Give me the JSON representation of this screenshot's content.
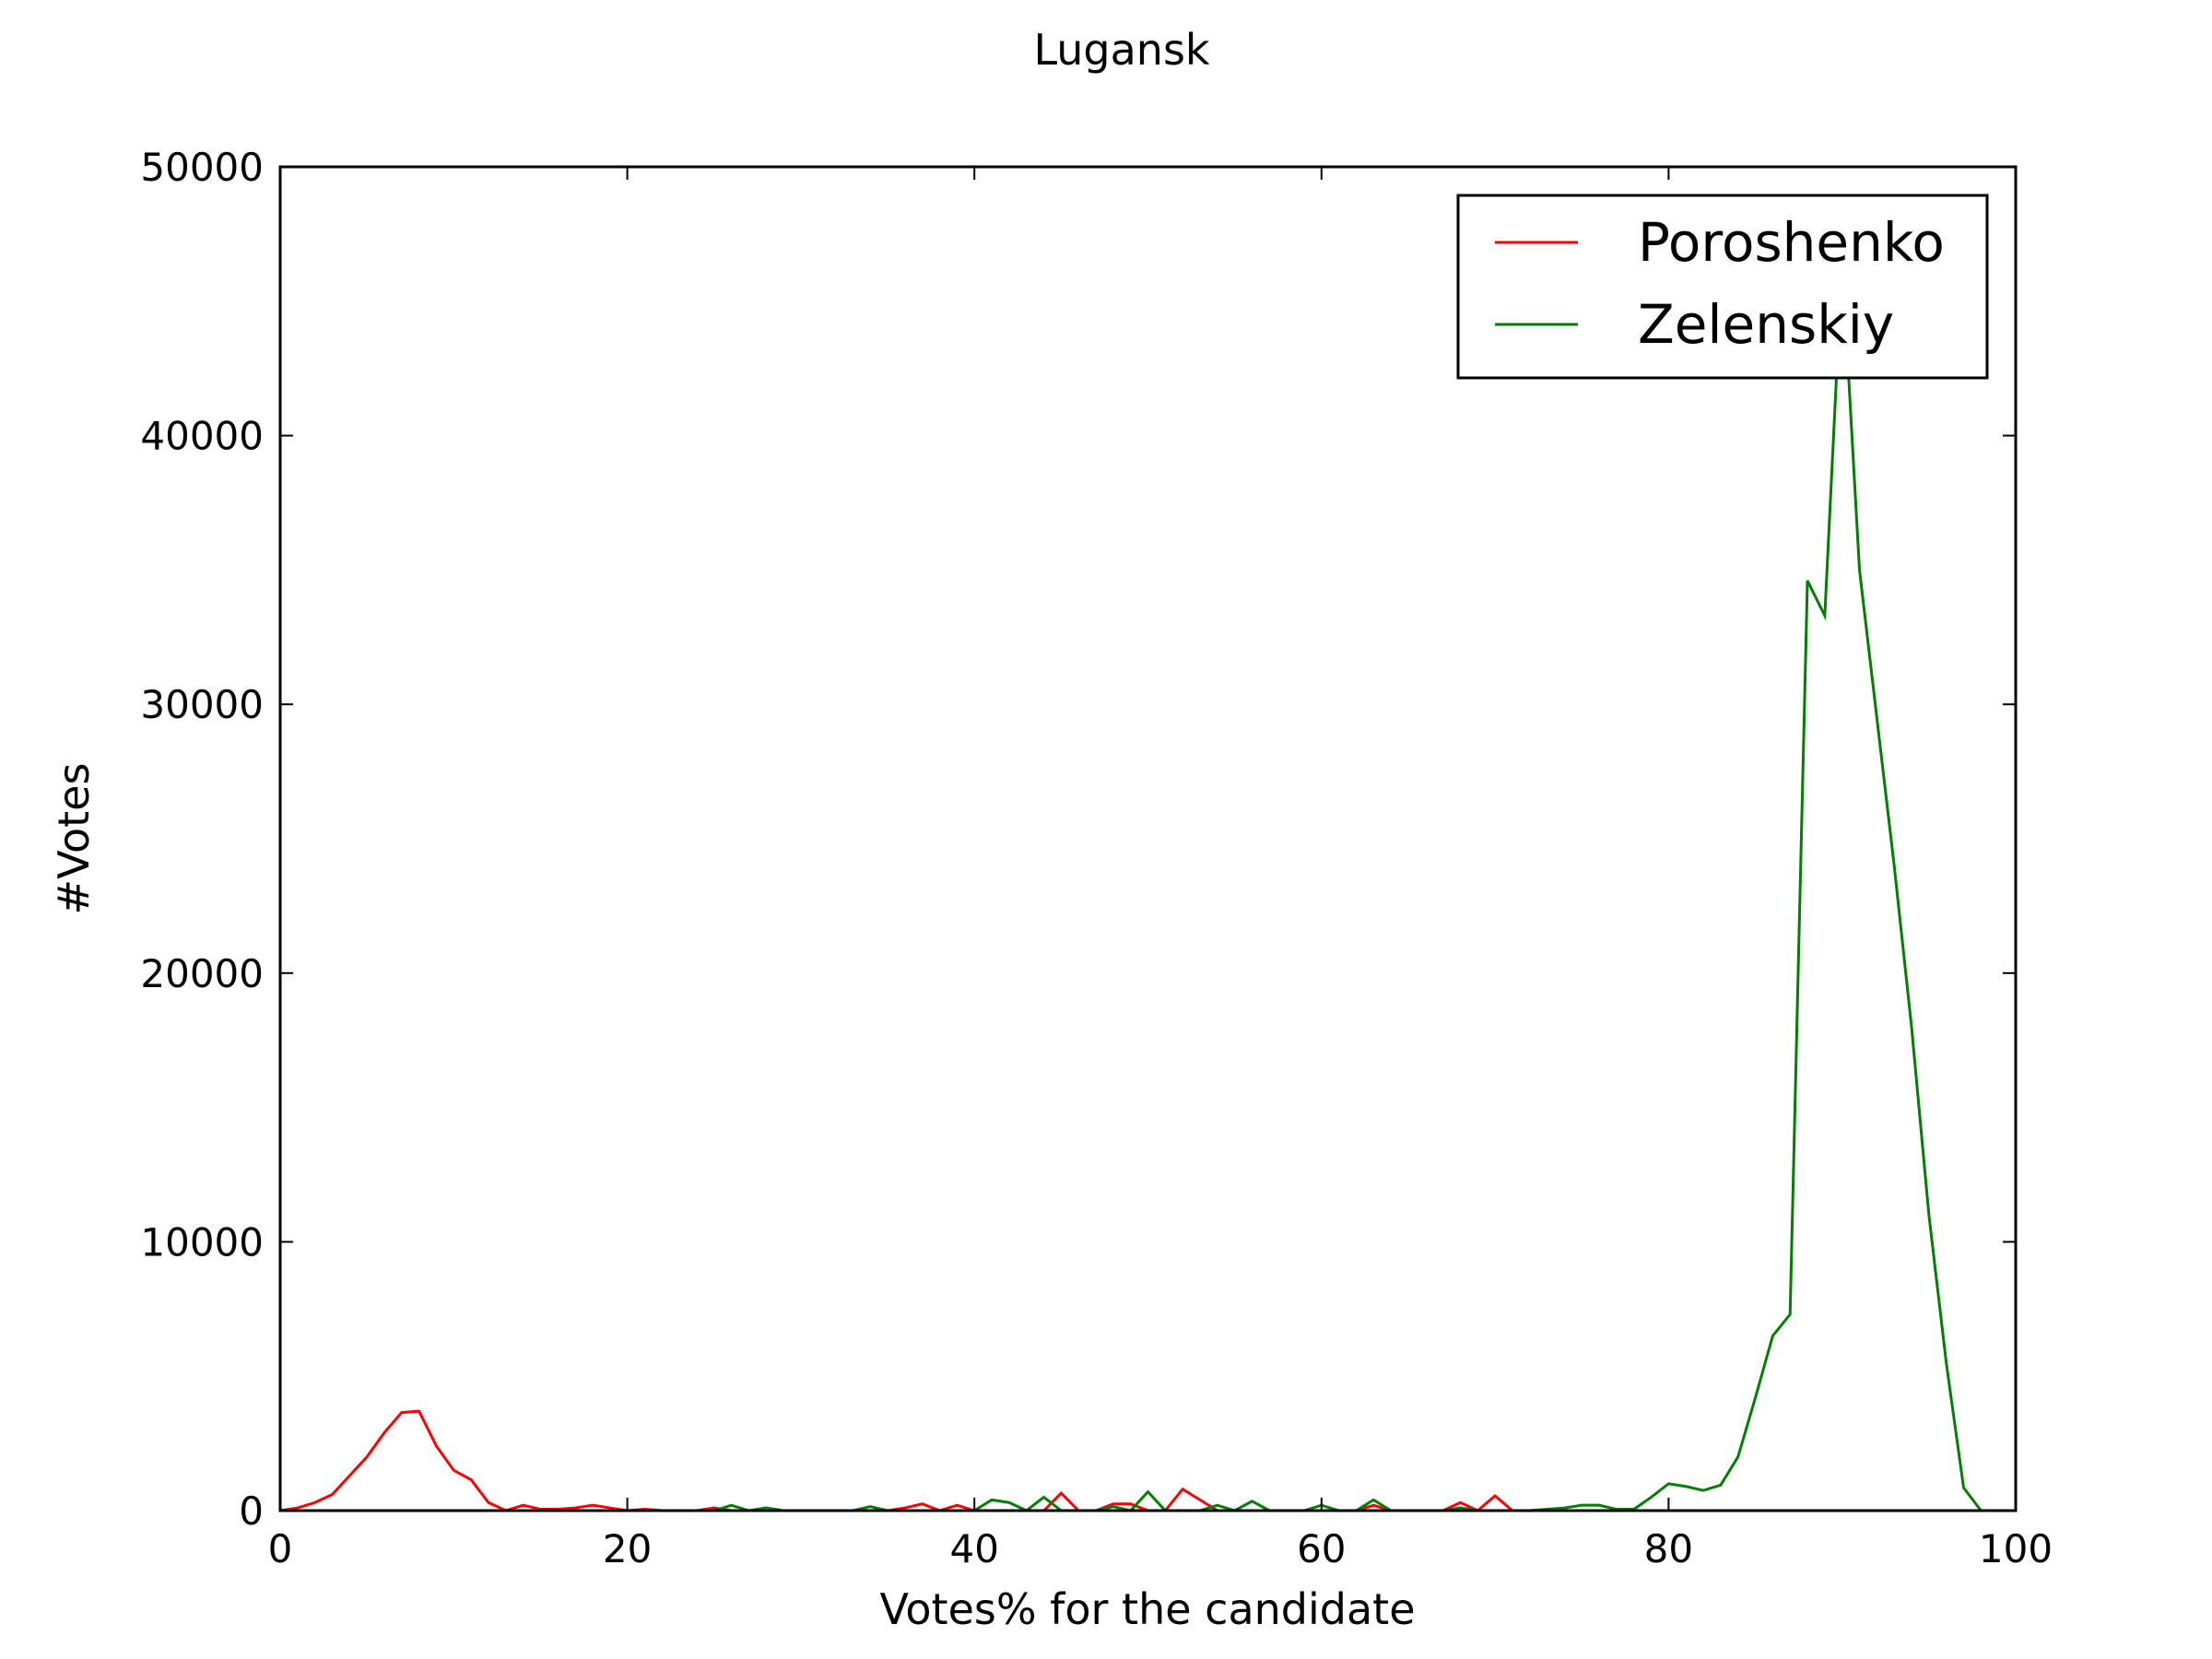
{
  "chart_data": {
    "type": "line",
    "title": "Lugansk",
    "xlabel": "Votes% for the candidate",
    "ylabel": "#Votes",
    "xlim": [
      0,
      100
    ],
    "ylim": [
      0,
      50000
    ],
    "xticks": [
      0,
      20,
      40,
      60,
      80,
      100
    ],
    "xtick_labels": [
      "0",
      "20",
      "40",
      "60",
      "80",
      "100"
    ],
    "yticks": [
      0,
      10000,
      20000,
      30000,
      40000,
      50000
    ],
    "ytick_labels": [
      "0",
      "10000",
      "20000",
      "30000",
      "40000",
      "50000"
    ],
    "grid": false,
    "legend": {
      "placement": "top-right"
    },
    "series": [
      {
        "name": "Poroshenko",
        "color": "#ff0000",
        "x": [
          0,
          1,
          2,
          3,
          4,
          5,
          6,
          7,
          8,
          9,
          10,
          11,
          12,
          13,
          14,
          15,
          16,
          17,
          18,
          19,
          20,
          21,
          22,
          23,
          24,
          25,
          26,
          27,
          28,
          29,
          30,
          31,
          32,
          33,
          34,
          35,
          36,
          37,
          38,
          39,
          40,
          41,
          42,
          43,
          44,
          45,
          46,
          47,
          48,
          49,
          50,
          51,
          52,
          53,
          54,
          55,
          56,
          57,
          58,
          59,
          60,
          61,
          62,
          63,
          64,
          65,
          66,
          67,
          68,
          69,
          70,
          71,
          72,
          73,
          74,
          75,
          76,
          77,
          78,
          79,
          80,
          81,
          82,
          83,
          84,
          85,
          86,
          87,
          88,
          89,
          90,
          91,
          92,
          93,
          94,
          95,
          96,
          97,
          98,
          99,
          100
        ],
        "values": [
          0,
          100,
          300,
          600,
          1300,
          2000,
          2900,
          3650,
          3700,
          2400,
          1500,
          1150,
          300,
          0,
          200,
          50,
          50,
          100,
          200,
          100,
          0,
          50,
          0,
          0,
          0,
          100,
          0,
          0,
          0,
          0,
          0,
          0,
          0,
          0,
          0,
          0,
          100,
          250,
          0,
          200,
          0,
          0,
          0,
          0,
          0,
          650,
          0,
          0,
          250,
          250,
          0,
          0,
          800,
          400,
          0,
          0,
          0,
          0,
          0,
          0,
          0,
          0,
          0,
          200,
          0,
          0,
          0,
          0,
          300,
          0,
          550,
          0,
          0,
          0,
          0,
          0,
          0,
          0,
          0,
          0,
          0,
          0,
          0,
          0,
          0,
          0,
          0,
          0,
          0,
          0,
          0,
          0,
          0,
          0,
          0,
          0,
          0,
          0,
          0,
          0,
          0
        ]
      },
      {
        "name": "Zelenskiy",
        "color": "#008000",
        "x": [
          0,
          1,
          2,
          3,
          4,
          5,
          6,
          7,
          8,
          9,
          10,
          11,
          12,
          13,
          14,
          15,
          16,
          17,
          18,
          19,
          20,
          21,
          22,
          23,
          24,
          25,
          26,
          27,
          28,
          29,
          30,
          31,
          32,
          33,
          34,
          35,
          36,
          37,
          38,
          39,
          40,
          41,
          42,
          43,
          44,
          45,
          46,
          47,
          48,
          49,
          50,
          51,
          52,
          53,
          54,
          55,
          56,
          57,
          58,
          59,
          60,
          61,
          62,
          63,
          64,
          65,
          66,
          67,
          68,
          69,
          70,
          71,
          72,
          73,
          74,
          75,
          76,
          77,
          78,
          79,
          80,
          81,
          82,
          83,
          84,
          85,
          86,
          87,
          88,
          89,
          90,
          91,
          92,
          93,
          94,
          95,
          96,
          97,
          98,
          99,
          100
        ],
        "values": [
          0,
          0,
          0,
          0,
          0,
          0,
          0,
          0,
          0,
          0,
          0,
          0,
          0,
          0,
          0,
          0,
          0,
          0,
          0,
          0,
          0,
          0,
          0,
          0,
          0,
          0,
          200,
          0,
          100,
          0,
          0,
          0,
          0,
          0,
          150,
          0,
          0,
          0,
          0,
          0,
          0,
          400,
          300,
          0,
          500,
          0,
          0,
          0,
          150,
          0,
          700,
          0,
          0,
          0,
          200,
          0,
          350,
          0,
          0,
          0,
          200,
          0,
          0,
          400,
          0,
          0,
          0,
          0,
          100,
          0,
          0,
          0,
          0,
          50,
          100,
          200,
          200,
          50,
          50,
          500,
          1000,
          900,
          750,
          950,
          2000,
          4200,
          6500,
          7300,
          34600,
          33300,
          46500,
          35000,
          29500,
          24000,
          18000,
          11000,
          5500,
          850,
          0,
          0,
          0
        ]
      }
    ]
  }
}
